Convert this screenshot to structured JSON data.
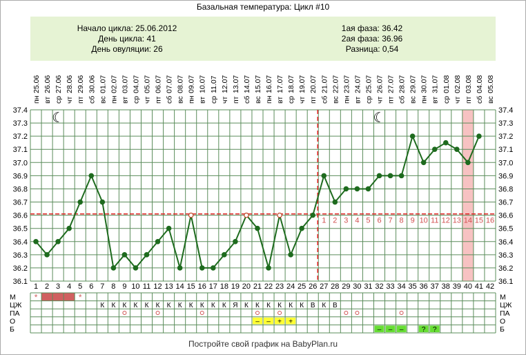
{
  "title": "Базальная температура: Цикл #10",
  "stats": {
    "cycle_start": "Начало цикла: 25.06.2012",
    "cycle_day": "День цикла: 41",
    "ovulation_day": "День овуляции: 26",
    "phase1": "1ая фаза: 36.42",
    "phase2": "2ая фаза: 36.96",
    "difference": "Разница: 0,54"
  },
  "footer": "Постройте свой график на BabyPlan.ru",
  "colors": {
    "line": "#1e6b1e",
    "grid": "#5a8c5a",
    "coverline": "#e02020",
    "highlight": "#f7c2c2",
    "menses": "#d06060",
    "yellow": "#ffff33",
    "green": "#66dd33",
    "panel": "#e6f3d4"
  },
  "icons": {
    "moon": "crescent-moon-icon",
    "star": "star-icon"
  },
  "chart_data": {
    "type": "line",
    "title": "Базальная температура: Цикл #10",
    "dates": [
      "25.06",
      "26.06",
      "27.06",
      "28.06",
      "29.06",
      "30.06",
      "01.07",
      "02.07",
      "03.07",
      "04.07",
      "05.07",
      "06.07",
      "07.07",
      "08.07",
      "09.07",
      "10.07",
      "11.07",
      "12.07",
      "13.07",
      "14.07",
      "15.07",
      "16.07",
      "17.07",
      "18.07",
      "19.07",
      "20.07",
      "21.07",
      "22.07",
      "23.07",
      "24.07",
      "25.07",
      "26.07",
      "27.07",
      "28.07",
      "29.07",
      "30.07",
      "31.07",
      "01.08",
      "02.08",
      "03.08",
      "04.08",
      "05.08"
    ],
    "weekdays": [
      "пн",
      "вт",
      "ср",
      "чт",
      "пт",
      "сб",
      "вс",
      "пн",
      "вт",
      "ср",
      "чт",
      "пт",
      "сб",
      "вс",
      "пн",
      "вт",
      "ср",
      "чт",
      "пт",
      "сб",
      "вс",
      "пн",
      "вт",
      "ср",
      "чт",
      "пт",
      "сб",
      "вс",
      "пн",
      "вт",
      "ср",
      "чт",
      "пт",
      "сб",
      "вс",
      "пн",
      "вт",
      "ср",
      "чт",
      "пт",
      "сб",
      "вс"
    ],
    "days": [
      1,
      2,
      3,
      4,
      5,
      6,
      7,
      8,
      9,
      10,
      11,
      12,
      13,
      14,
      15,
      16,
      17,
      18,
      19,
      20,
      21,
      22,
      23,
      24,
      25,
      26,
      27,
      28,
      29,
      30,
      31,
      32,
      33,
      34,
      35,
      36,
      37,
      38,
      39,
      40,
      41,
      42
    ],
    "temperatures": [
      36.4,
      36.3,
      36.4,
      36.5,
      36.7,
      36.9,
      36.7,
      36.2,
      36.3,
      36.2,
      36.3,
      36.4,
      36.5,
      36.2,
      36.6,
      36.2,
      36.2,
      36.3,
      36.4,
      36.6,
      36.5,
      36.2,
      36.6,
      36.3,
      36.5,
      36.6,
      36.9,
      36.7,
      36.8,
      36.8,
      36.8,
      36.9,
      36.9,
      36.9,
      37.2,
      37.0,
      37.1,
      37.15,
      37.1,
      37.0,
      37.2,
      null
    ],
    "open_points": [
      15,
      20,
      23
    ],
    "y_ticks": [
      "37.4",
      "37.3",
      "37.2",
      "37.1",
      "37.0",
      "36.9",
      "36.8",
      "36.7",
      "36.6",
      "36.5",
      "36.4",
      "36.3",
      "36.2",
      "36.1"
    ],
    "ylim": [
      36.1,
      37.4
    ],
    "coverline": 36.61,
    "ovulation_day": 26,
    "luteal_labels": [
      "1",
      "2",
      "3",
      "4",
      "5",
      "6",
      "7",
      "8",
      "9",
      "10",
      "11",
      "12",
      "13",
      "14",
      "15",
      "16"
    ],
    "highlight_day": 40,
    "moon_days": [
      3,
      32
    ]
  },
  "table": {
    "row_labels": [
      "М",
      "ЦЖ",
      "ПА",
      "О",
      "Б"
    ],
    "menses": {
      "star_days": [
        1,
        5
      ],
      "bar_from": 2,
      "bar_to": 4
    },
    "cm": [
      {
        "day": 7,
        "t": "К"
      },
      {
        "day": 8,
        "t": "К"
      },
      {
        "day": 9,
        "t": "К"
      },
      {
        "day": 10,
        "t": "К"
      },
      {
        "day": 11,
        "t": "К"
      },
      {
        "day": 12,
        "t": "К"
      },
      {
        "day": 13,
        "t": "К"
      },
      {
        "day": 14,
        "t": "К"
      },
      {
        "day": 15,
        "t": "К"
      },
      {
        "day": 16,
        "t": "К"
      },
      {
        "day": 17,
        "t": "К"
      },
      {
        "day": 18,
        "t": "К"
      },
      {
        "day": 19,
        "t": "Я"
      },
      {
        "day": 20,
        "t": "К"
      },
      {
        "day": 21,
        "t": "К"
      },
      {
        "day": 22,
        "t": "К"
      },
      {
        "day": 23,
        "t": "К"
      },
      {
        "day": 24,
        "t": "К"
      },
      {
        "day": 25,
        "t": "К"
      },
      {
        "day": 26,
        "t": "В"
      },
      {
        "day": 27,
        "t": "К"
      },
      {
        "day": 28,
        "t": "В"
      }
    ],
    "pa_days": [
      9,
      12,
      16,
      21,
      23,
      29,
      30,
      34
    ],
    "opk": [
      {
        "day": 21,
        "t": "–"
      },
      {
        "day": 22,
        "t": "–"
      },
      {
        "day": 23,
        "t": "+"
      },
      {
        "day": 24,
        "t": "+"
      }
    ],
    "tests": [
      {
        "day": 32,
        "t": "–"
      },
      {
        "day": 33,
        "t": "–"
      },
      {
        "day": 34,
        "t": "–"
      },
      {
        "day": 36,
        "t": "?"
      },
      {
        "day": 37,
        "t": "?"
      }
    ]
  }
}
